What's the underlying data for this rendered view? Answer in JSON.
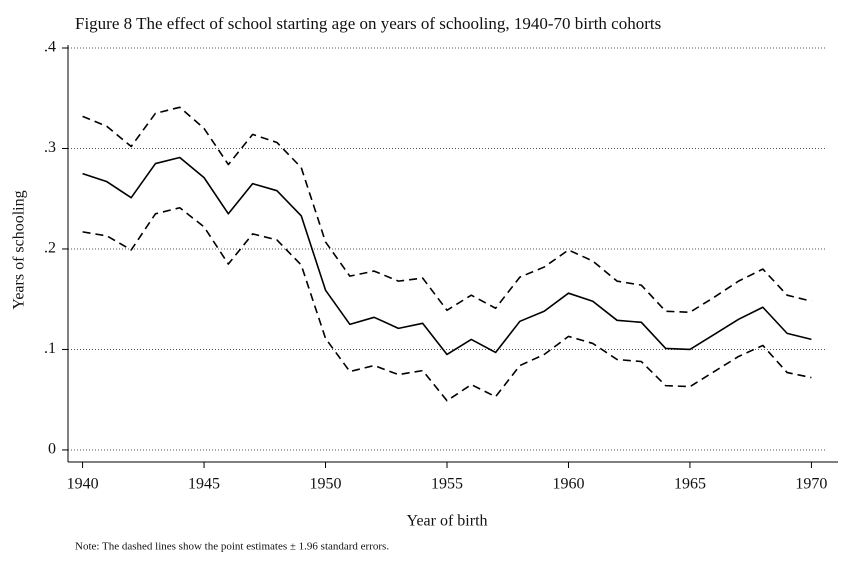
{
  "chart_data": {
    "type": "line",
    "title": "Figure 8 The effect of school starting age on years of schooling, 1940-70 birth cohorts",
    "xlabel": "Year of birth",
    "ylabel": "Years of schooling",
    "note": "Note: The dashed lines show the point estimates ± 1.96 standard errors.",
    "x": [
      1940,
      1941,
      1942,
      1943,
      1944,
      1945,
      1946,
      1947,
      1948,
      1949,
      1950,
      1951,
      1952,
      1953,
      1954,
      1955,
      1956,
      1957,
      1958,
      1959,
      1960,
      1961,
      1962,
      1963,
      1964,
      1965,
      1966,
      1967,
      1968,
      1969,
      1970
    ],
    "series": [
      {
        "color": "#000000",
        "dashed": false,
        "values": [
          0.275,
          0.267,
          0.251,
          0.285,
          0.291,
          0.271,
          0.235,
          0.265,
          0.258,
          0.233,
          0.159,
          0.125,
          0.132,
          0.121,
          0.126,
          0.095,
          0.11,
          0.097,
          0.128,
          0.138,
          0.156,
          0.148,
          0.129,
          0.127,
          0.101,
          0.1,
          0.115,
          0.13,
          0.142,
          0.116,
          0.11
        ]
      },
      {
        "color": "#000000",
        "dashed": true,
        "values": [
          0.332,
          0.322,
          0.302,
          0.335,
          0.341,
          0.32,
          0.284,
          0.314,
          0.306,
          0.281,
          0.207,
          0.173,
          0.178,
          0.168,
          0.171,
          0.139,
          0.154,
          0.141,
          0.172,
          0.182,
          0.199,
          0.188,
          0.168,
          0.164,
          0.138,
          0.137,
          0.152,
          0.168,
          0.18,
          0.154,
          0.148
        ]
      },
      {
        "color": "#000000",
        "dashed": true,
        "values": [
          0.217,
          0.213,
          0.199,
          0.235,
          0.241,
          0.222,
          0.185,
          0.215,
          0.209,
          0.184,
          0.111,
          0.078,
          0.084,
          0.075,
          0.079,
          0.049,
          0.065,
          0.053,
          0.084,
          0.095,
          0.113,
          0.106,
          0.09,
          0.088,
          0.064,
          0.063,
          0.078,
          0.093,
          0.104,
          0.077,
          0.072
        ]
      }
    ],
    "xlim": [
      1939.4,
      1970.6
    ],
    "xticks": [
      1940,
      1945,
      1950,
      1955,
      1960,
      1965,
      1970
    ],
    "ylim": [
      -0.012,
      0.4
    ],
    "yticks": [
      0,
      {
        "value": 0.1,
        "label": ".1"
      },
      {
        "value": 0.2,
        "label": ".2"
      },
      {
        "value": 0.3,
        "label": ".3"
      },
      {
        "value": 0.4,
        "label": ".4"
      }
    ],
    "grid": true
  }
}
